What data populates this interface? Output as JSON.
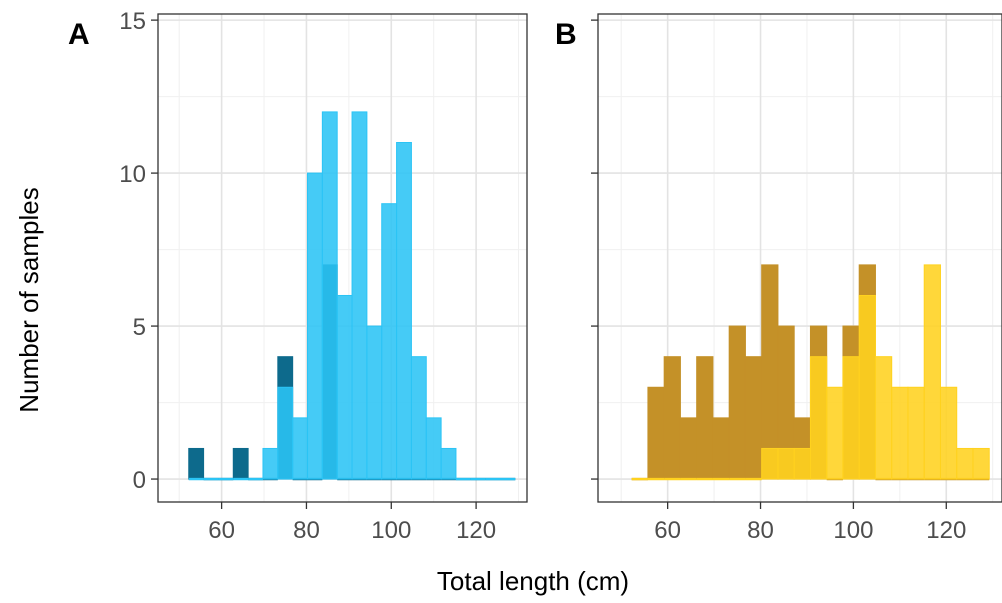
{
  "colors": {
    "panel_a_overlay": "#2bc4f5",
    "panel_a_base": "#0d6a8c",
    "panel_b_overlay": "#ffd21f",
    "panel_b_base": "#c49128",
    "grid": "#e3e3e3",
    "border": "#333333",
    "tick_text": "#4d4d4d"
  },
  "chart_data": [
    {
      "type": "bar",
      "panel_label": "A",
      "xlabel": "Total length (cm)",
      "ylabel": "Number of samples",
      "xlim": [
        45,
        132
      ],
      "ylim": [
        -0.75,
        15.2
      ],
      "xticks": [
        60,
        80,
        100,
        120
      ],
      "yticks": [
        0,
        5,
        10,
        15
      ],
      "grid": true,
      "bin_width": 3.5,
      "bin_centers": [
        54,
        57.5,
        61,
        64.5,
        68,
        71.5,
        75,
        78.5,
        82,
        85.5,
        89,
        92.5,
        96,
        99.5,
        103,
        106.5,
        110,
        113.5,
        117,
        120.5,
        124,
        127.5
      ],
      "series": [
        {
          "values": [
            1,
            0,
            0,
            1,
            0,
            0,
            4,
            0,
            0,
            7,
            0,
            0,
            0,
            0,
            0,
            0,
            0,
            0,
            0,
            0,
            0,
            0
          ]
        },
        {
          "values": [
            0,
            0,
            0,
            0,
            0,
            1,
            3,
            2,
            10,
            12,
            6,
            12,
            5,
            9,
            11,
            4,
            2,
            1,
            0,
            0,
            0,
            0
          ]
        }
      ]
    },
    {
      "type": "bar",
      "panel_label": "B",
      "xlabel": "Total length (cm)",
      "xlim": [
        45,
        132
      ],
      "ylim": [
        -0.75,
        15.2
      ],
      "xticks": [
        60,
        80,
        100,
        120
      ],
      "yticks": [
        0,
        5,
        10,
        15
      ],
      "grid": true,
      "bin_width": 3.5,
      "bin_centers": [
        54,
        57.5,
        61,
        64.5,
        68,
        71.5,
        75,
        78.5,
        82,
        85.5,
        89,
        92.5,
        96,
        99.5,
        103,
        106.5,
        110,
        113.5,
        117,
        120.5,
        124,
        127.5
      ],
      "series": [
        {
          "values": [
            0,
            3,
            4,
            2,
            4,
            2,
            5,
            4,
            7,
            5,
            2,
            5,
            0,
            5,
            7,
            0,
            0,
            0,
            0,
            0,
            0,
            0
          ]
        },
        {
          "values": [
            0,
            0,
            0,
            0,
            0,
            0,
            0,
            0,
            1,
            1,
            1,
            4,
            3,
            4,
            6,
            4,
            3,
            3,
            7,
            3,
            1,
            1
          ]
        }
      ]
    }
  ]
}
